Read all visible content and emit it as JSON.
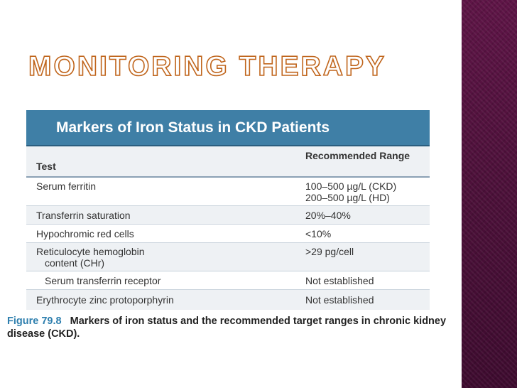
{
  "slide": {
    "title": "Monitoring Therapy"
  },
  "table": {
    "title": "Markers of Iron Status in CKD Patients",
    "columns": [
      "Test",
      "Recommended Range"
    ],
    "rows": [
      {
        "test": "Serum ferritin",
        "range_line1": "100–500 µg/L (CKD)",
        "range_line2": "200–500 µg/L (HD)"
      },
      {
        "test": "Transferrin saturation",
        "range_line1": "20%–40%"
      },
      {
        "test": "Hypochromic red cells",
        "range_line1": "<10%"
      },
      {
        "test": "Reticulocyte hemoglobin",
        "test_line2": "content (CHr)",
        "range_line1": ">29 pg/cell"
      },
      {
        "test": "Serum transferrin receptor",
        "range_line1": "Not established"
      },
      {
        "test": "Erythrocyte zinc protoporphyrin",
        "range_line1": "Not established"
      }
    ]
  },
  "caption": {
    "label": "Figure 79.8",
    "text": "Markers of iron status and the recommended target ranges in chronic kidney disease (CKD)."
  },
  "colors": {
    "sidebar": "#4c1039",
    "title_outline": "#c0651c",
    "table_header": "#3f7fa6",
    "figure_label": "#2e7fae"
  }
}
